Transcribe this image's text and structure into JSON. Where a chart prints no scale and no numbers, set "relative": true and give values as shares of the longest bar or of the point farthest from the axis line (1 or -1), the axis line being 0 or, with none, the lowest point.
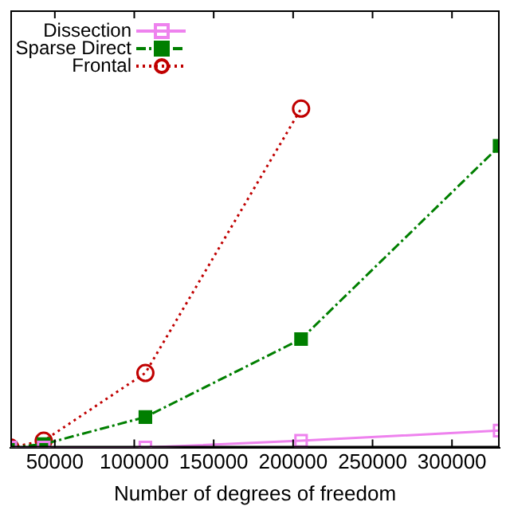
{
  "chart_data": {
    "type": "line",
    "xlabel": "Number of degrees of freedom",
    "relative": true,
    "xlim": [
      22000,
      330000
    ],
    "xticks": [
      50000,
      100000,
      150000,
      200000,
      250000,
      300000
    ],
    "x": [
      22000,
      43000,
      107000,
      205000,
      330000
    ],
    "series": [
      {
        "name": "Dissection",
        "color": "#ee82ee",
        "marker": "square",
        "line_style": "solid",
        "values": [
          0,
          0,
          0,
          0.02,
          0.05
        ]
      },
      {
        "name": "Sparse Direct",
        "color": "#007f00",
        "marker": "square",
        "line_style": "dashdot",
        "values": [
          0,
          0.01,
          0.09,
          0.32,
          0.89
        ]
      },
      {
        "name": "Frontal",
        "color": "#c00000",
        "marker": "circle",
        "line_style": "dotted",
        "values": [
          0,
          0.02,
          0.22,
          1,
          null
        ]
      }
    ],
    "legend": "top left",
    "grid": false
  }
}
